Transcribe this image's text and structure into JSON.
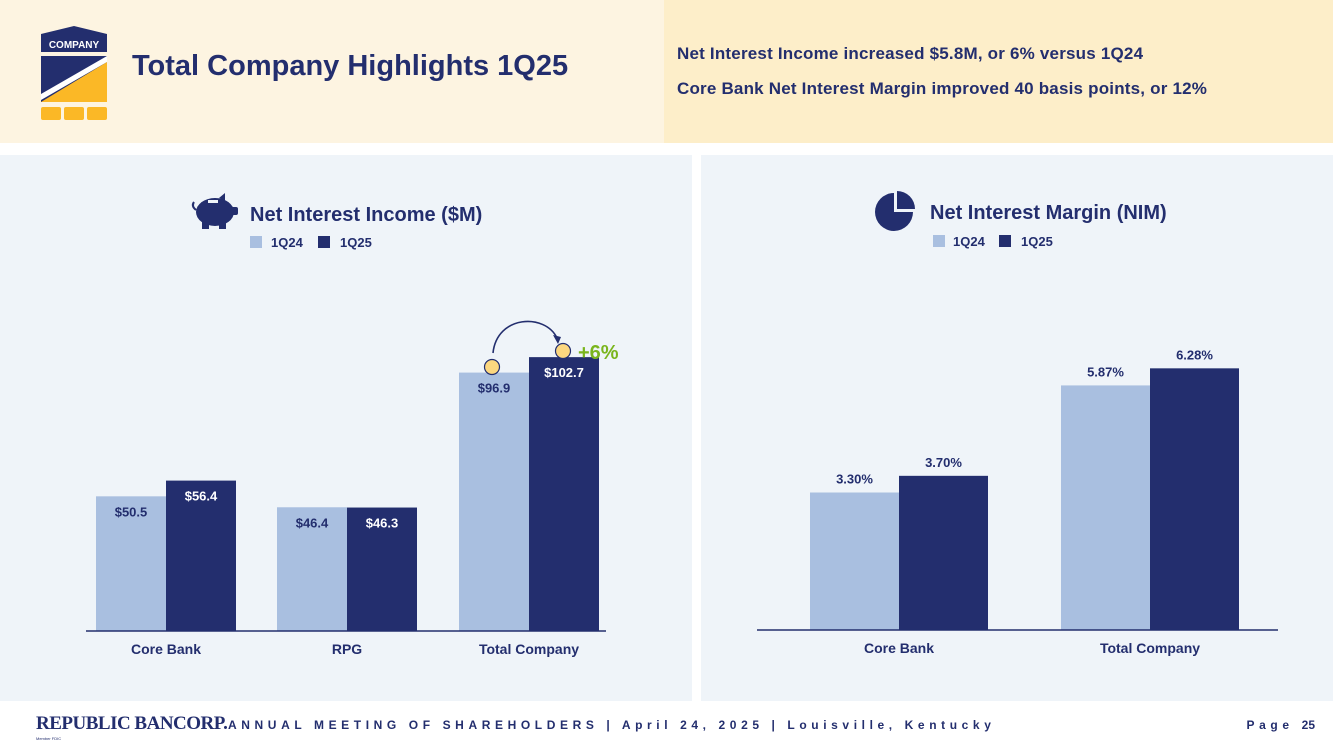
{
  "header": {
    "logo_text": "COMPANY",
    "title": "Total Company Highlights 1Q25",
    "highlights": [
      "Net Interest Income increased $5.8M, or 6% versus 1Q24",
      "Core Bank Net Interest Margin improved 40 basis points, or 12%"
    ]
  },
  "colors": {
    "navy": "#232e6e",
    "light_blue": "#a9bfe0",
    "accent_green": "#7ab51d",
    "coin": "#fcd77f"
  },
  "chart_data": [
    {
      "type": "bar",
      "title": "Net Interest Income ($M)",
      "icon": "piggy-bank-icon",
      "categories": [
        "Core Bank",
        "RPG",
        "Total Company"
      ],
      "series": [
        {
          "name": "1Q24",
          "values": [
            50.5,
            46.4,
            96.9
          ],
          "labels": [
            "$50.5",
            "$46.4",
            "$96.9"
          ]
        },
        {
          "name": "1Q25",
          "values": [
            56.4,
            46.3,
            102.7
          ],
          "labels": [
            "$56.4",
            "$46.3",
            "$102.7"
          ]
        }
      ],
      "ylim": [
        0,
        120
      ],
      "annotation": "+6%"
    },
    {
      "type": "bar",
      "title": "Net Interest Margin (NIM)",
      "icon": "pie-chart-icon",
      "categories": [
        "Core Bank",
        "Total Company"
      ],
      "series": [
        {
          "name": "1Q24",
          "values": [
            3.3,
            5.87
          ],
          "labels": [
            "3.30%",
            "5.87%"
          ]
        },
        {
          "name": "1Q25",
          "values": [
            3.7,
            6.28
          ],
          "labels": [
            "3.70%",
            "6.28%"
          ]
        }
      ],
      "ylim": [
        0,
        7.8
      ]
    }
  ],
  "footer": {
    "brand": "REPUBLIC BANCORP.",
    "brand_sub": "Member FDIC",
    "meeting": "ANNUAL MEETING OF SHAREHOLDERS | April 24, 2025 | Louisville, Kentucky",
    "page_label": "Page",
    "page_number": "25"
  }
}
